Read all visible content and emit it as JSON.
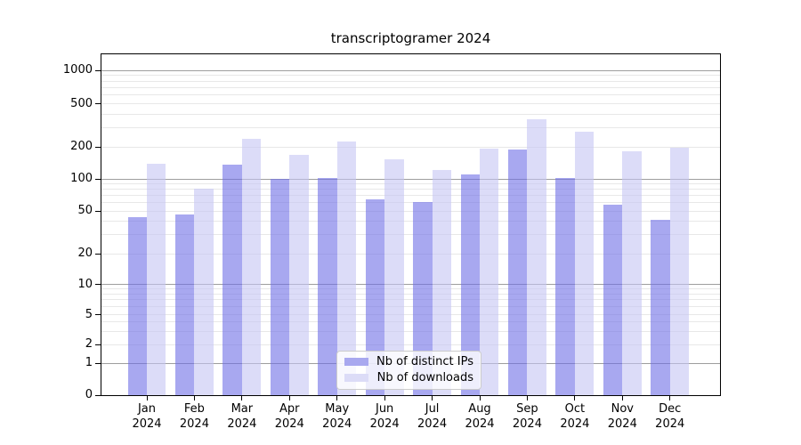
{
  "title": "transcriptogramer 2024",
  "chart_data": {
    "type": "bar",
    "title": "transcriptogramer 2024",
    "categories": [
      "Jan",
      "Feb",
      "Mar",
      "Apr",
      "May",
      "Jun",
      "Jul",
      "Aug",
      "Sep",
      "Oct",
      "Nov",
      "Dec"
    ],
    "category_year": "2024",
    "series": [
      {
        "name": "Nb of distinct IPs",
        "color": "#a8a8ef",
        "fill": "rgba(110,110,230,0.6)",
        "values": [
          44,
          46,
          136,
          101,
          102,
          64,
          61,
          110,
          191,
          102,
          57,
          41
        ]
      },
      {
        "name": "Nb of downloads",
        "color": "#dcdcf7",
        "fill": "rgba(197,197,243,0.6)",
        "values": [
          140,
          81,
          238,
          169,
          225,
          152,
          122,
          193,
          360,
          275,
          182,
          196
        ]
      }
    ],
    "yscale": "symlog",
    "y_ticks": [
      0,
      1,
      2,
      5,
      10,
      20,
      50,
      100,
      200,
      500,
      1000
    ],
    "ylim": [
      0,
      1450
    ],
    "xlabel": "",
    "ylabel": "",
    "grid": true,
    "legend_position": "lower center"
  },
  "colors": {
    "grid_major": "#9e9e9e",
    "grid_minor": "#e8e8e8",
    "spine": "#000000",
    "background": "#ffffff"
  }
}
